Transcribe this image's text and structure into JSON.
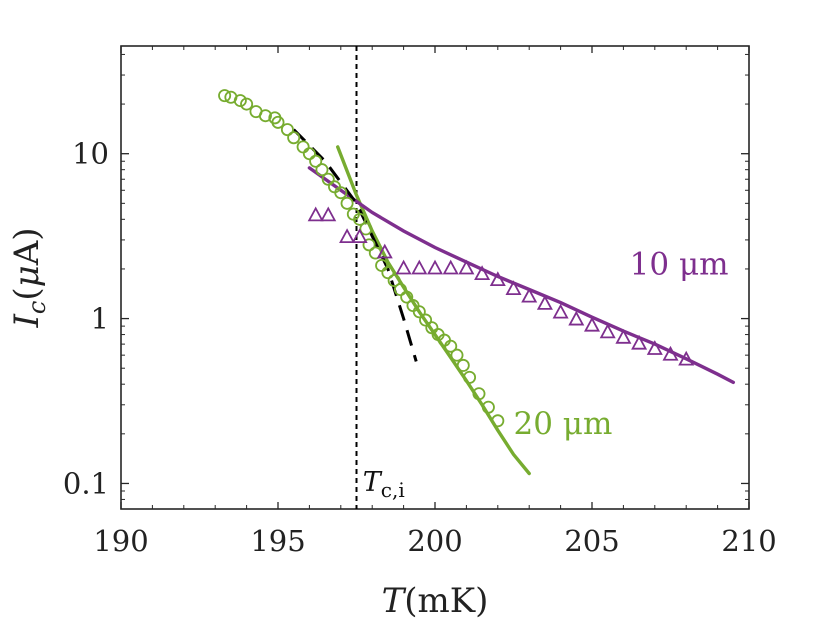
{
  "chart_data": {
    "type": "scatter",
    "title": "",
    "xlabel": "T (mK)",
    "ylabel": "I_c (μA)",
    "xlim": [
      190,
      210
    ],
    "ylim": [
      0.07,
      45
    ],
    "yscale": "log",
    "xticks": [
      190,
      195,
      200,
      205,
      210
    ],
    "xtick_labels": [
      "190",
      "195",
      "200",
      "205",
      "210"
    ],
    "yticks": [
      0.1,
      1,
      10
    ],
    "ytick_labels": [
      "0.1",
      "1",
      "10"
    ],
    "grid": false,
    "colors": {
      "green": "#77ac30",
      "purple": "#7e2f8e",
      "black": "#000000"
    },
    "series": [
      {
        "name": "20 μm",
        "label": "20 μm",
        "marker": "circle",
        "color": "#77ac30",
        "x": [
          193.3,
          193.5,
          193.8,
          194.0,
          194.3,
          194.6,
          194.9,
          195.0,
          195.3,
          195.5,
          195.8,
          196.0,
          196.2,
          196.4,
          196.6,
          196.8,
          197.0,
          197.2,
          197.4,
          197.6,
          197.8,
          197.9,
          198.1,
          198.3,
          198.5,
          198.7,
          198.9,
          199.1,
          199.3,
          199.5,
          199.7,
          199.9,
          200.1,
          200.3,
          200.5,
          200.7,
          200.9,
          201.1,
          201.4,
          201.7,
          202.0
        ],
        "y": [
          22.5,
          22,
          21,
          20,
          18,
          17,
          16.5,
          15.5,
          14,
          12.5,
          11,
          10,
          9,
          8,
          7,
          6.3,
          5.8,
          5,
          4.3,
          4,
          3.5,
          2.8,
          2.5,
          2.1,
          1.9,
          1.7,
          1.5,
          1.35,
          1.2,
          1.1,
          0.98,
          0.88,
          0.8,
          0.74,
          0.68,
          0.6,
          0.52,
          0.44,
          0.35,
          0.29,
          0.24
        ]
      },
      {
        "name": "10 μm",
        "label": "10 μm",
        "marker": "triangle",
        "color": "#7e2f8e",
        "x": [
          196.2,
          196.6,
          197.2,
          197.6,
          198.4,
          199.0,
          199.5,
          200.0,
          200.5,
          201.0,
          201.5,
          202.0,
          202.5,
          203.0,
          203.5,
          204.0,
          204.5,
          205.0,
          205.5,
          206.0,
          206.5,
          207.0,
          207.5,
          208.0
        ],
        "y": [
          4.2,
          4.2,
          3.1,
          3.1,
          2.5,
          2.0,
          2.0,
          2.0,
          2.0,
          2.0,
          1.85,
          1.7,
          1.5,
          1.35,
          1.22,
          1.08,
          0.98,
          0.9,
          0.82,
          0.76,
          0.7,
          0.65,
          0.6,
          0.56
        ]
      }
    ],
    "fits": [
      {
        "name": "20 μm fit",
        "color": "#77ac30",
        "style": "solid",
        "x": [
          196.9,
          197.5,
          198.0,
          198.5,
          199.0,
          199.5,
          200.0,
          200.5,
          201.0,
          201.5,
          202.0,
          202.5,
          203.0
        ],
        "y": [
          11,
          5.6,
          3.4,
          2.2,
          1.55,
          1.1,
          0.8,
          0.58,
          0.42,
          0.3,
          0.21,
          0.15,
          0.115
        ]
      },
      {
        "name": "10 μm fit",
        "color": "#7e2f8e",
        "style": "solid",
        "x": [
          196.0,
          197.0,
          198.0,
          199.0,
          200.0,
          201.0,
          202.0,
          203.0,
          204.0,
          205.0,
          206.0,
          207.0,
          208.0,
          209.0,
          209.5
        ],
        "y": [
          8.2,
          6.0,
          4.4,
          3.4,
          2.7,
          2.2,
          1.8,
          1.5,
          1.25,
          1.02,
          0.84,
          0.7,
          0.57,
          0.46,
          0.41
        ]
      },
      {
        "name": "black dashed fit",
        "color": "#000000",
        "style": "dashed",
        "x": [
          195.5,
          196.5,
          197.5,
          198.5,
          199.0,
          199.4
        ],
        "y": [
          14,
          9,
          5,
          2,
          1.0,
          0.55
        ]
      }
    ],
    "vlines": [
      {
        "x": 197.5,
        "label": "T_{c,i}",
        "style": "dotted",
        "color": "#000000"
      }
    ],
    "annotations": [
      {
        "text": "10 μm",
        "x": 206.2,
        "y": 1.85,
        "color": "#7e2f8e"
      },
      {
        "text": "20 μm",
        "x": 202.5,
        "y": 0.2,
        "color": "#77ac30"
      },
      {
        "text": "T_{c,i}",
        "x": 197.7,
        "y": 0.09,
        "color": "#000000"
      }
    ]
  }
}
